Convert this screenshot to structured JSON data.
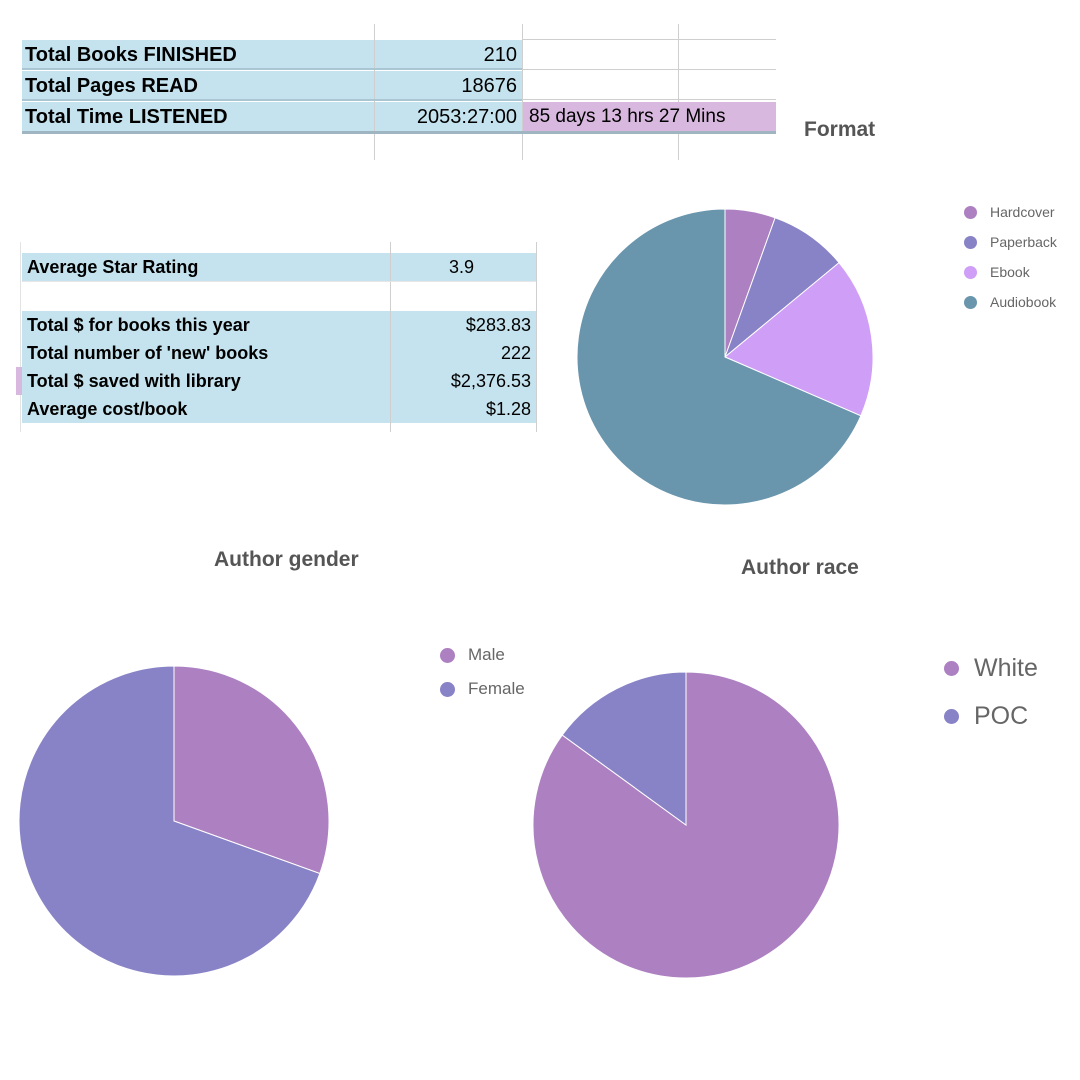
{
  "summary_table": {
    "rows": [
      {
        "label": "Total Books FINISHED",
        "value": "210"
      },
      {
        "label": "Total Pages READ",
        "value": "18676"
      },
      {
        "label": "Total Time LISTENED",
        "value": "2053:27:00",
        "extra": "85 days 13 hrs 27 Mins"
      }
    ]
  },
  "stats_table": {
    "rating": {
      "label": "Average Star Rating",
      "value": "3.9"
    },
    "rows": [
      {
        "label": "Total $ for books this year",
        "value": "$283.83"
      },
      {
        "label": "Total number of 'new' books",
        "value": "222"
      },
      {
        "label": "Total $ saved with library",
        "value": "$2,376.53"
      },
      {
        "label": "Average cost/book",
        "value": "$1.28"
      }
    ]
  },
  "colors": {
    "cell_blue": "#c5e3ee",
    "cell_lilac": "#d9b8df"
  },
  "chart_data": [
    {
      "type": "pie",
      "title": "Format",
      "legend_position": "right",
      "categories": [
        "Hardcover",
        "Paperback",
        "Ebook",
        "Audiobook"
      ],
      "values": [
        5.5,
        8.5,
        17.5,
        68.5
      ],
      "colors": [
        "#ad80c2",
        "#8882c7",
        "#cf9ef6",
        "#6995ad"
      ]
    },
    {
      "type": "pie",
      "title": "Author gender",
      "legend_position": "right",
      "categories": [
        "Male",
        "Female"
      ],
      "values": [
        30.5,
        69.5
      ],
      "colors": [
        "#ad80c2",
        "#8882c7"
      ]
    },
    {
      "type": "pie",
      "title": "Author race",
      "legend_position": "right",
      "categories": [
        "White",
        "POC"
      ],
      "values": [
        85,
        15
      ],
      "colors": [
        "#ad80c2",
        "#8882c7"
      ]
    }
  ]
}
